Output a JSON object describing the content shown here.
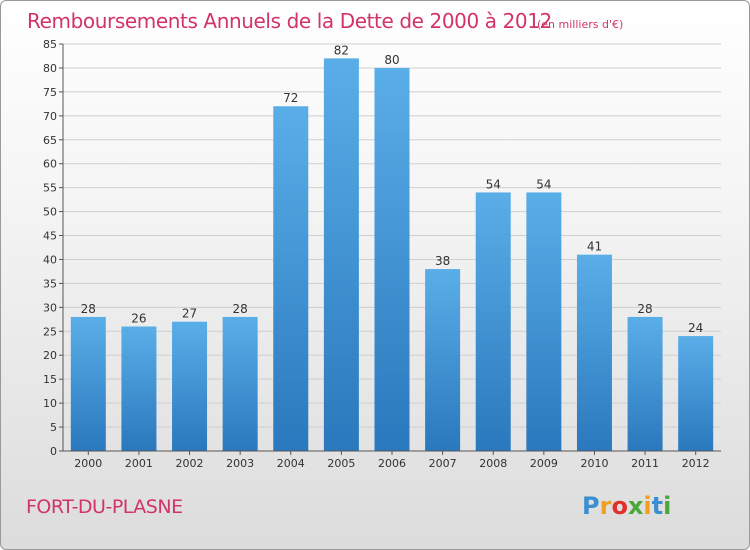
{
  "header": {
    "title": "Remboursements Annuels de la Dette de 2000 à 2012",
    "unit_note": "(en milliers d'€)"
  },
  "footer": {
    "place": "FORT-DU-PLASNE",
    "logo_letters": [
      "P",
      "r",
      "o",
      "x",
      "i",
      "t",
      "i"
    ],
    "logo_colors": [
      "#3a8fd0",
      "#f0a020",
      "#e0302a",
      "#4aa83a",
      "#f0a020",
      "#3a8fd0",
      "#4aa83a"
    ]
  },
  "chart_data": {
    "type": "bar",
    "title": "Remboursements Annuels de la Dette de 2000 à 2012",
    "subtitle": "(en milliers d'€)",
    "xlabel": "",
    "ylabel": "",
    "categories": [
      "2000",
      "2001",
      "2002",
      "2003",
      "2004",
      "2005",
      "2006",
      "2007",
      "2008",
      "2009",
      "2010",
      "2011",
      "2012"
    ],
    "values": [
      28,
      26,
      27,
      28,
      72,
      82,
      80,
      38,
      54,
      54,
      41,
      28,
      24
    ],
    "ylim": [
      0,
      85
    ],
    "yticks": [
      0,
      5,
      10,
      15,
      20,
      25,
      30,
      35,
      40,
      45,
      50,
      55,
      60,
      65,
      70,
      75,
      80,
      85
    ],
    "grid": true,
    "bar_color_top": "#5aaee8",
    "bar_color_bottom": "#2a78bd",
    "grid_color": "#cfcfcf",
    "label_color": "#333333"
  }
}
